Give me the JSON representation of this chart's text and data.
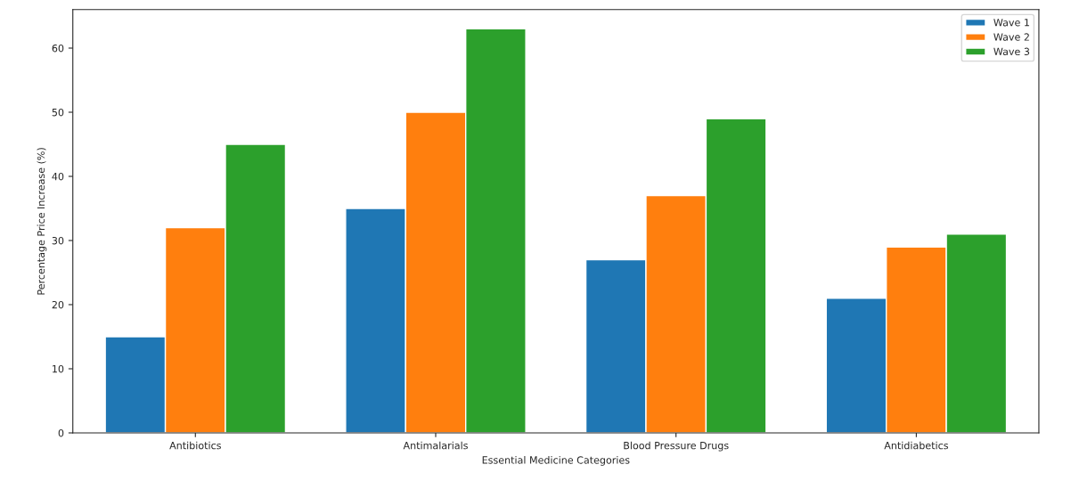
{
  "chart_data": {
    "type": "bar",
    "xlabel": "Essential Medicine Categories",
    "ylabel": "Percentage Price Increase (%)",
    "categories": [
      "Antibiotics",
      "Antimalarials",
      "Blood Pressure Drugs",
      "Antidiabetics"
    ],
    "series": [
      {
        "name": "Wave 1",
        "color": "#1f77b4",
        "values": [
          15,
          35,
          27,
          21
        ]
      },
      {
        "name": "Wave 2",
        "color": "#ff7f0e",
        "values": [
          32,
          50,
          37,
          29
        ]
      },
      {
        "name": "Wave 3",
        "color": "#2ca02c",
        "values": [
          45,
          63,
          49,
          31
        ]
      }
    ],
    "ylim": [
      0,
      66
    ],
    "yticks": [
      0,
      10,
      20,
      30,
      40,
      50,
      60
    ],
    "legend": "top right",
    "grid": false
  }
}
